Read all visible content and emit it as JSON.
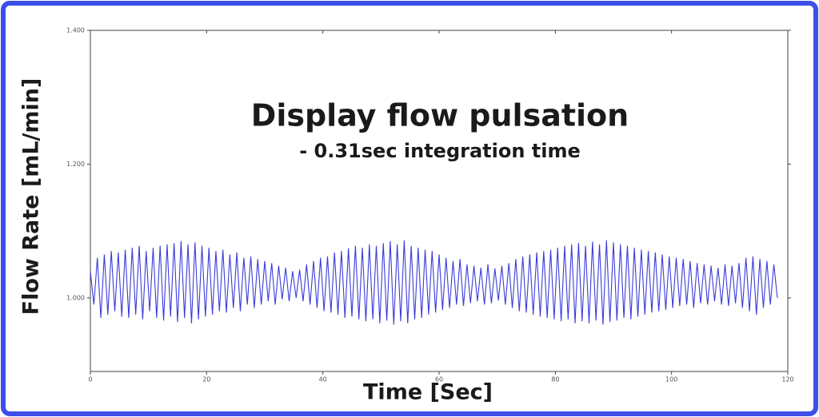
{
  "chart_data": {
    "type": "line",
    "title": "Display flow pulsation",
    "subtitle": "- 0.31sec integration time",
    "ylabel": "Flow Rate [mL/min]",
    "xlabel": "Time [Sec]",
    "color": "#3b3bdb",
    "xlim": [
      0,
      120
    ],
    "xticks": [
      0,
      20,
      40,
      60,
      80,
      100,
      120
    ],
    "ylim": [
      0.89,
      1.4
    ],
    "yticks": [
      {
        "value": 1.0,
        "label": "1.000"
      },
      {
        "value": 1.2,
        "label": "1.200"
      },
      {
        "value": 1.4,
        "label": "1.400"
      }
    ],
    "x": [
      0,
      0.6,
      1.2,
      1.8,
      2.4,
      3,
      3.6,
      4.2,
      4.8,
      5.4,
      6,
      6.6,
      7.2,
      7.8,
      8.4,
      9,
      9.6,
      10.2,
      10.8,
      11.4,
      12,
      12.6,
      13.2,
      13.8,
      14.4,
      15,
      15.6,
      16.2,
      16.8,
      17.4,
      18,
      18.6,
      19.2,
      19.8,
      20.4,
      21,
      21.6,
      22.2,
      22.8,
      23.4,
      24,
      24.6,
      25.2,
      25.8,
      26.4,
      27,
      27.6,
      28.2,
      28.8,
      29.4,
      30,
      30.6,
      31.2,
      31.8,
      32.4,
      33,
      33.6,
      34.2,
      34.8,
      35.4,
      36,
      36.6,
      37.2,
      37.8,
      38.4,
      39,
      39.6,
      40.2,
      40.8,
      41.4,
      42,
      42.6,
      43.2,
      43.8,
      44.4,
      45,
      45.6,
      46.2,
      46.8,
      47.4,
      48,
      48.6,
      49.2,
      49.8,
      50.4,
      51,
      51.6,
      52.2,
      52.8,
      53.4,
      54,
      54.6,
      55.2,
      55.8,
      56.4,
      57,
      57.6,
      58.2,
      58.8,
      59.4,
      60,
      60.6,
      61.2,
      61.8,
      62.4,
      63,
      63.6,
      64.2,
      64.8,
      65.4,
      66,
      66.6,
      67.2,
      67.8,
      68.4,
      69,
      69.6,
      70.2,
      70.8,
      71.4,
      72,
      72.6,
      73.2,
      73.8,
      74.4,
      75,
      75.6,
      76.2,
      76.8,
      77.4,
      78,
      78.6,
      79.2,
      79.8,
      80.4,
      81,
      81.6,
      82.2,
      82.8,
      83.4,
      84,
      84.6,
      85.2,
      85.8,
      86.4,
      87,
      87.6,
      88.2,
      88.8,
      89.4,
      90,
      90.6,
      91.2,
      91.8,
      92.4,
      93,
      93.6,
      94.2,
      94.8,
      95.4,
      96,
      96.6,
      97.2,
      97.8,
      98.4,
      99,
      99.6,
      100.2,
      100.8,
      101.4,
      102,
      102.6,
      103.2,
      103.8,
      104.4,
      105,
      105.6,
      106.2,
      106.8,
      107.4,
      108,
      108.6,
      109.2,
      109.8,
      110.4,
      111,
      111.6,
      112.2,
      112.8,
      113.4,
      114,
      114.6,
      115.2,
      115.8,
      116.4,
      117,
      117.6,
      118.2
    ],
    "values": [
      1.04,
      0.99,
      1.06,
      0.97,
      1.065,
      0.975,
      1.07,
      0.98,
      1.068,
      0.972,
      1.072,
      0.97,
      1.075,
      0.975,
      1.078,
      0.968,
      1.07,
      0.98,
      1.075,
      0.97,
      1.078,
      0.966,
      1.08,
      0.972,
      1.082,
      0.964,
      1.085,
      0.97,
      1.08,
      0.962,
      1.083,
      0.968,
      1.078,
      0.972,
      1.075,
      0.975,
      1.07,
      0.98,
      1.072,
      0.978,
      1.065,
      0.985,
      1.068,
      0.98,
      1.06,
      0.99,
      1.062,
      0.985,
      1.058,
      0.99,
      1.055,
      0.995,
      1.052,
      0.99,
      1.048,
      0.998,
      1.045,
      0.995,
      1.04,
      1.0,
      1.042,
      0.995,
      1.05,
      0.99,
      1.055,
      0.985,
      1.06,
      0.98,
      1.062,
      0.978,
      1.068,
      0.975,
      1.07,
      0.97,
      1.074,
      0.972,
      1.078,
      0.968,
      1.075,
      0.965,
      1.08,
      0.968,
      1.078,
      0.962,
      1.082,
      0.966,
      1.085,
      0.96,
      1.08,
      0.965,
      1.086,
      0.962,
      1.078,
      0.968,
      1.075,
      0.97,
      1.072,
      0.975,
      1.07,
      0.978,
      1.065,
      0.982,
      1.06,
      0.985,
      1.055,
      0.99,
      1.058,
      0.988,
      1.05,
      0.992,
      1.048,
      0.995,
      1.045,
      0.99,
      1.05,
      0.992,
      1.044,
      0.996,
      1.048,
      0.99,
      1.052,
      0.985,
      1.058,
      0.98,
      1.062,
      0.978,
      1.065,
      0.975,
      1.068,
      0.972,
      1.07,
      0.97,
      1.072,
      0.968,
      1.075,
      0.965,
      1.078,
      0.968,
      1.08,
      0.962,
      1.082,
      0.965,
      1.078,
      0.962,
      1.084,
      0.966,
      1.08,
      0.96,
      1.086,
      0.964,
      1.083,
      0.966,
      1.08,
      0.97,
      1.078,
      0.968,
      1.075,
      0.972,
      1.072,
      0.975,
      1.07,
      0.978,
      1.068,
      0.98,
      1.065,
      0.982,
      1.062,
      0.985,
      1.06,
      0.988,
      1.058,
      0.99,
      1.055,
      0.985,
      1.052,
      0.992,
      1.05,
      0.99,
      1.048,
      0.995,
      1.045,
      0.99,
      1.05,
      0.988,
      1.048,
      0.992,
      1.052,
      0.985,
      1.06,
      0.98,
      1.062,
      0.975,
      1.058,
      0.985,
      1.055,
      0.99,
      1.05,
      1.0
    ]
  }
}
